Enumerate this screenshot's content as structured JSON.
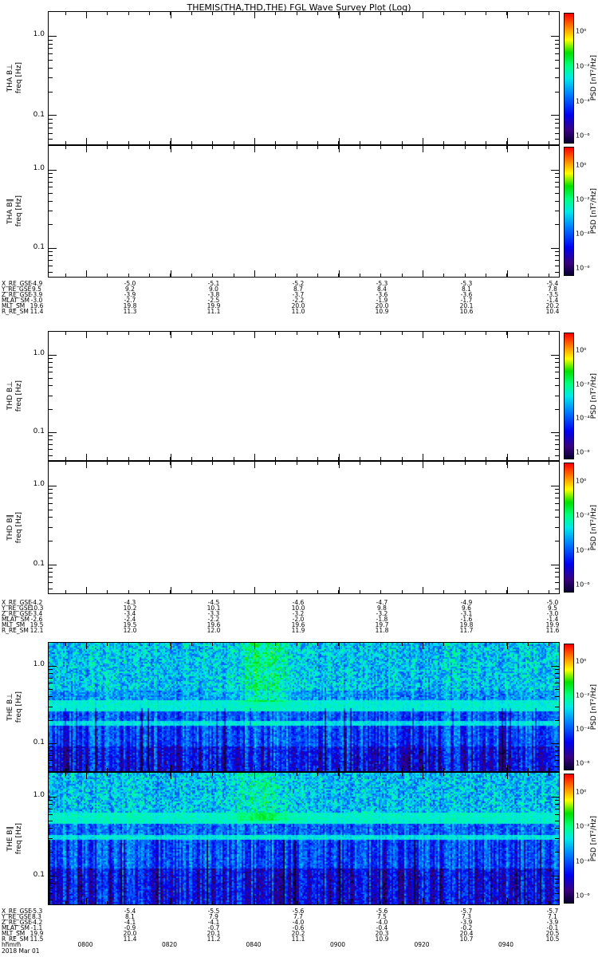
{
  "title": "THEMIS(THA,THD,THE) FGL Wave Survey Plot (Log)",
  "date_label": "2018 Mar 01",
  "colorbar": {
    "label": "PSD [nT²/Hz]",
    "ticks": [
      "10⁰",
      "10⁻²",
      "10⁻⁴",
      "10⁻⁶"
    ]
  },
  "panels": [
    {
      "label": "THA B⊥",
      "ylabel": "freq [Hz]",
      "yticks": [
        "1.0",
        "0.1"
      ],
      "has_data": false
    },
    {
      "label": "THA B∥",
      "ylabel": "freq [Hz]",
      "yticks": [
        "1.0",
        "0.1"
      ],
      "has_data": false
    },
    {
      "label": "THD B⊥",
      "ylabel": "freq [Hz]",
      "yticks": [
        "1.0",
        "0.1"
      ],
      "has_data": false
    },
    {
      "label": "THD B∥",
      "ylabel": "freq [Hz]",
      "yticks": [
        "1.0",
        "0.1"
      ],
      "has_data": false
    },
    {
      "label": "THE B⊥",
      "ylabel": "freq [Hz]",
      "yticks": [
        "1.0",
        "0.1"
      ],
      "has_data": true
    },
    {
      "label": "THE B∥",
      "ylabel": "freq [Hz]",
      "yticks": [
        "1.0",
        "0.1"
      ],
      "has_data": true
    }
  ],
  "time_row": {
    "label": "hhmm",
    "values": [
      "0800",
      "0820",
      "0840",
      "0900",
      "0920",
      "0940"
    ]
  },
  "annotation_blocks": [
    {
      "rows": [
        {
          "label": "X_RE_GSE",
          "values": [
            "-4.9",
            "-5.0",
            "-5.1",
            "-5.2",
            "-5.3",
            "-5.3",
            "-5.4"
          ]
        },
        {
          "label": "Y_RE_GSE",
          "values": [
            "9.5",
            "9.2",
            "9.0",
            "8.7",
            "8.4",
            "8.1",
            "7.8"
          ]
        },
        {
          "label": "Z_RE_GSE",
          "values": [
            "-3.9",
            "-3.9",
            "-3.8",
            "-3.7",
            "-3.6",
            "-3.6",
            "-3.5"
          ]
        },
        {
          "label": "MLAT_SM",
          "values": [
            "-3.0",
            "-2.7",
            "-2.5",
            "-2.2",
            "-1.9",
            "-1.7",
            "-1.4"
          ]
        },
        {
          "label": "MLT_SM",
          "values": [
            "19.6",
            "19.8",
            "19.9",
            "20.0",
            "20.0",
            "20.1",
            "20.2"
          ]
        },
        {
          "label": "R_RE_SM",
          "values": [
            "11.4",
            "11.3",
            "11.1",
            "11.0",
            "10.9",
            "10.6",
            "10.4"
          ]
        }
      ]
    },
    {
      "rows": [
        {
          "label": "X_RE_GSE",
          "values": [
            "-4.2",
            "-4.3",
            "-4.5",
            "-4.6",
            "-4.7",
            "-4.9",
            "-5.0"
          ]
        },
        {
          "label": "Y_RE_GSE",
          "values": [
            "10.3",
            "10.2",
            "10.1",
            "10.0",
            "9.8",
            "9.6",
            "9.5"
          ]
        },
        {
          "label": "Z_RE_GSE",
          "values": [
            "-3.4",
            "-3.4",
            "-3.3",
            "-3.2",
            "-3.2",
            "-3.1",
            "-3.0"
          ]
        },
        {
          "label": "MLAT_SM",
          "values": [
            "-2.6",
            "-2.4",
            "-2.2",
            "-2.0",
            "-1.8",
            "-1.6",
            "-1.4"
          ]
        },
        {
          "label": "MLT_SM",
          "values": [
            "19.5",
            "19.5",
            "19.6",
            "19.6",
            "19.7",
            "19.8",
            "19.9"
          ]
        },
        {
          "label": "R_RE_SM",
          "values": [
            "12.1",
            "12.0",
            "12.0",
            "11.9",
            "11.8",
            "11.7",
            "11.6"
          ]
        }
      ]
    },
    {
      "rows": [
        {
          "label": "X_RE_GSE",
          "values": [
            "-5.3",
            "-5.4",
            "-5.5",
            "-5.6",
            "-5.6",
            "-5.7",
            "-5.7"
          ]
        },
        {
          "label": "Y_RE_GSE",
          "values": [
            "8.3",
            "8.1",
            "7.9",
            "7.7",
            "7.5",
            "7.3",
            "7.1"
          ]
        },
        {
          "label": "Z_RE_GSE",
          "values": [
            "-4.2",
            "-4.1",
            "-4.1",
            "-4.0",
            "-4.0",
            "-3.9",
            "-3.9"
          ]
        },
        {
          "label": "MLAT_SM",
          "values": [
            "-1.1",
            "-0.9",
            "-0.7",
            "-0.6",
            "-0.4",
            "-0.2",
            "-0.1"
          ]
        },
        {
          "label": "MLT_SM",
          "values": [
            "19.9",
            "20.0",
            "20.1",
            "20.2",
            "20.3",
            "20.4",
            "20.5"
          ]
        },
        {
          "label": "R_RE_SM",
          "values": [
            "11.5",
            "11.4",
            "11.2",
            "11.1",
            "10.9",
            "10.7",
            "10.5"
          ]
        }
      ]
    }
  ],
  "colormap": [
    [
      0.0,
      "#06002e"
    ],
    [
      0.1,
      "#3a0080"
    ],
    [
      0.22,
      "#0000ee"
    ],
    [
      0.38,
      "#0080ff"
    ],
    [
      0.5,
      "#00e8e8"
    ],
    [
      0.6,
      "#00ff80"
    ],
    [
      0.7,
      "#00e000"
    ],
    [
      0.8,
      "#ffff00"
    ],
    [
      0.9,
      "#ff8000"
    ],
    [
      1.0,
      "#ff0000"
    ]
  ],
  "chart_data": [
    {
      "type": "heatmap",
      "panel": "THA B⊥",
      "spacecraft": "THA",
      "component": "B⊥",
      "x_axis": "time (hhmm, 2018 Mar 01)",
      "x_ticks": [
        "0800",
        "0820",
        "0840",
        "0900",
        "0920",
        "0940"
      ],
      "y_axis": "freq [Hz]",
      "y_scale": "log",
      "y_range": [
        0.04,
        2.0
      ],
      "y_ticks": [
        1.0,
        0.1
      ],
      "z_axis": "PSD [nT²/Hz]",
      "z_scale": "log",
      "z_range": [
        1e-06,
        1.0
      ],
      "data_present": false,
      "description": "empty panel — no PSD data plotted"
    },
    {
      "type": "heatmap",
      "panel": "THA B∥",
      "spacecraft": "THA",
      "component": "B∥",
      "x_axis": "time (hhmm, 2018 Mar 01)",
      "x_ticks": [
        "0800",
        "0820",
        "0840",
        "0900",
        "0920",
        "0940"
      ],
      "y_axis": "freq [Hz]",
      "y_scale": "log",
      "y_range": [
        0.04,
        2.0
      ],
      "y_ticks": [
        1.0,
        0.1
      ],
      "z_axis": "PSD [nT²/Hz]",
      "z_scale": "log",
      "z_range": [
        1e-06,
        1.0
      ],
      "data_present": false,
      "description": "empty panel — no PSD data plotted"
    },
    {
      "type": "heatmap",
      "panel": "THD B⊥",
      "spacecraft": "THD",
      "component": "B⊥",
      "x_axis": "time (hhmm, 2018 Mar 01)",
      "x_ticks": [
        "0800",
        "0820",
        "0840",
        "0900",
        "0920",
        "0940"
      ],
      "y_axis": "freq [Hz]",
      "y_scale": "log",
      "y_range": [
        0.04,
        2.0
      ],
      "y_ticks": [
        1.0,
        0.1
      ],
      "z_axis": "PSD [nT²/Hz]",
      "z_scale": "log",
      "z_range": [
        1e-06,
        1.0
      ],
      "data_present": false,
      "description": "empty panel — no PSD data plotted"
    },
    {
      "type": "heatmap",
      "panel": "THD B∥",
      "spacecraft": "THD",
      "component": "B∥",
      "x_axis": "time (hhmm, 2018 Mar 01)",
      "x_ticks": [
        "0800",
        "0820",
        "0840",
        "0900",
        "0920",
        "0940"
      ],
      "y_axis": "freq [Hz]",
      "y_scale": "log",
      "y_range": [
        0.04,
        2.0
      ],
      "y_ticks": [
        1.0,
        0.1
      ],
      "z_axis": "PSD [nT²/Hz]",
      "z_scale": "log",
      "z_range": [
        1e-06,
        1.0
      ],
      "data_present": false,
      "description": "empty panel — no PSD data plotted"
    },
    {
      "type": "heatmap",
      "panel": "THE B⊥",
      "spacecraft": "THE",
      "component": "B⊥",
      "x_axis": "time (hhmm, 2018 Mar 01)",
      "x_ticks": [
        "0800",
        "0820",
        "0840",
        "0900",
        "0920",
        "0940"
      ],
      "y_axis": "freq [Hz]",
      "y_scale": "log",
      "y_range": [
        0.04,
        2.0
      ],
      "y_ticks": [
        1.0,
        0.1
      ],
      "z_axis": "PSD [nT²/Hz]",
      "z_scale": "log",
      "z_range": [
        1e-06,
        1.0
      ],
      "data_present": true,
      "description": "broadband noise spectrogram: speckled cyan/blue above ~0.3 Hz with greenish enhancement near 0845; solid bright-cyan band around 0.35–0.45 Hz plus a thinner cyan line below it; vertically striped blue/dark-blue below 0.3 Hz; darkest purple-blue patches at lowest frequencies",
      "texture": {
        "seed": 42,
        "regions": [
          {
            "y0": 0.0,
            "y1": 0.36,
            "base": 0.46,
            "noise": 0.13,
            "col_noise": 0.05
          },
          {
            "y0": 0.36,
            "y1": 0.44,
            "base": 0.4,
            "noise": 0.1,
            "col_noise": 0.06
          },
          {
            "y0": 0.44,
            "y1": 0.52,
            "base": 0.52,
            "noise": 0.04,
            "col_noise": 0.02
          },
          {
            "y0": 0.52,
            "y1": 0.6,
            "base": 0.33,
            "noise": 0.08,
            "col_noise": 0.1
          },
          {
            "y0": 0.6,
            "y1": 0.64,
            "base": 0.5,
            "noise": 0.05,
            "col_noise": 0.03
          },
          {
            "y0": 0.64,
            "y1": 0.8,
            "base": 0.3,
            "noise": 0.08,
            "col_noise": 0.12
          },
          {
            "y0": 0.8,
            "y1": 1.0,
            "base": 0.22,
            "noise": 0.09,
            "col_noise": 0.14
          }
        ],
        "burst": {
          "x_center": 0.42,
          "width": 0.05,
          "amplitude": 0.14,
          "y_max": 0.45
        },
        "dark_column_prob": 0.06,
        "dark_column_drop": 0.18
      }
    },
    {
      "type": "heatmap",
      "panel": "THE B∥",
      "spacecraft": "THE",
      "component": "B∥",
      "x_axis": "time (hhmm, 2018 Mar 01)",
      "x_ticks": [
        "0800",
        "0820",
        "0840",
        "0900",
        "0920",
        "0940"
      ],
      "y_axis": "freq [Hz]",
      "y_scale": "log",
      "y_range": [
        0.04,
        2.0
      ],
      "y_ticks": [
        1.0,
        0.1
      ],
      "z_axis": "PSD [nT²/Hz]",
      "z_scale": "log",
      "z_range": [
        1e-06,
        1.0
      ],
      "data_present": true,
      "description": "broadband noise spectrogram: speckled cyan/blue at top with greenish enhancement near 0845; bright-cyan band around 0.4–0.5 Hz plus a thinner cyan line below; vertically striped blue/dark-blue at mid and low frequencies with darkest purple patches near the bottom",
      "texture": {
        "seed": 7,
        "regions": [
          {
            "y0": 0.0,
            "y1": 0.3,
            "base": 0.45,
            "noise": 0.13,
            "col_noise": 0.05
          },
          {
            "y0": 0.3,
            "y1": 0.38,
            "base": 0.53,
            "noise": 0.04,
            "col_noise": 0.02
          },
          {
            "y0": 0.38,
            "y1": 0.46,
            "base": 0.34,
            "noise": 0.09,
            "col_noise": 0.08
          },
          {
            "y0": 0.46,
            "y1": 0.5,
            "base": 0.5,
            "noise": 0.05,
            "col_noise": 0.03
          },
          {
            "y0": 0.5,
            "y1": 0.72,
            "base": 0.3,
            "noise": 0.08,
            "col_noise": 0.12
          },
          {
            "y0": 0.72,
            "y1": 1.0,
            "base": 0.2,
            "noise": 0.09,
            "col_noise": 0.15
          }
        ],
        "burst": {
          "x_center": 0.42,
          "width": 0.05,
          "amplitude": 0.12,
          "y_max": 0.35
        },
        "dark_column_prob": 0.07,
        "dark_column_drop": 0.18
      }
    }
  ]
}
